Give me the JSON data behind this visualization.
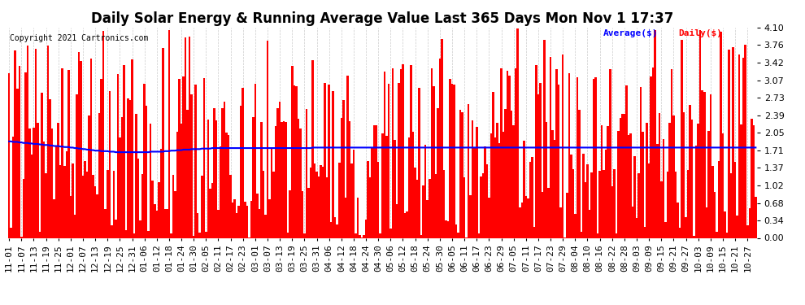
{
  "title": "Daily Solar Energy & Running Average Value Last 365 Days Mon Nov 1 17:37",
  "copyright": "Copyright 2021 Cartronics.com",
  "legend_avg": "Average($)",
  "legend_daily": "Daily($)",
  "bar_color": "#ff0000",
  "avg_line_color": "#0000ff",
  "background_color": "#ffffff",
  "grid_color": "#aaaaaa",
  "ylim": [
    0.0,
    4.1
  ],
  "yticks": [
    0.0,
    0.34,
    0.68,
    1.02,
    1.37,
    1.71,
    2.05,
    2.39,
    2.73,
    3.07,
    3.42,
    3.76,
    4.1
  ],
  "num_bars": 365,
  "title_fontsize": 12,
  "tick_fontsize": 8,
  "xlabel_dates": [
    "11-01",
    "11-07",
    "11-13",
    "11-19",
    "11-25",
    "12-01",
    "12-07",
    "12-13",
    "12-19",
    "12-25",
    "12-31",
    "01-06",
    "01-12",
    "01-18",
    "01-24",
    "01-30",
    "02-05",
    "02-11",
    "02-17",
    "02-23",
    "03-01",
    "03-07",
    "03-13",
    "03-19",
    "03-25",
    "03-31",
    "04-06",
    "04-12",
    "04-18",
    "04-24",
    "04-30",
    "05-06",
    "05-12",
    "05-18",
    "05-24",
    "05-30",
    "06-05",
    "06-11",
    "06-17",
    "06-23",
    "06-29",
    "07-05",
    "07-11",
    "07-17",
    "07-23",
    "07-29",
    "08-04",
    "08-10",
    "08-16",
    "08-22",
    "08-28",
    "09-03",
    "09-09",
    "09-15",
    "09-21",
    "09-27",
    "10-03",
    "10-09",
    "10-15",
    "10-21",
    "10-27"
  ],
  "avg_values": [
    1.88,
    1.88,
    1.87,
    1.87,
    1.87,
    1.86,
    1.86,
    1.85,
    1.85,
    1.85,
    1.84,
    1.84,
    1.83,
    1.83,
    1.83,
    1.82,
    1.82,
    1.81,
    1.81,
    1.81,
    1.8,
    1.8,
    1.79,
    1.79,
    1.79,
    1.78,
    1.78,
    1.77,
    1.77,
    1.77,
    1.76,
    1.76,
    1.75,
    1.75,
    1.74,
    1.74,
    1.73,
    1.73,
    1.72,
    1.72,
    1.71,
    1.71,
    1.7,
    1.7,
    1.7,
    1.69,
    1.69,
    1.69,
    1.69,
    1.68,
    1.68,
    1.68,
    1.67,
    1.67,
    1.67,
    1.67,
    1.67,
    1.67,
    1.67,
    1.67,
    1.67,
    1.67,
    1.67,
    1.67,
    1.67,
    1.67,
    1.67,
    1.67,
    1.67,
    1.68,
    1.68,
    1.68,
    1.68,
    1.68,
    1.68,
    1.68,
    1.69,
    1.69,
    1.69,
    1.7,
    1.7,
    1.7,
    1.71,
    1.71,
    1.71,
    1.72,
    1.72,
    1.72,
    1.72,
    1.73,
    1.73,
    1.73,
    1.73,
    1.73,
    1.74,
    1.74,
    1.74,
    1.74,
    1.74,
    1.75,
    1.75,
    1.75,
    1.75,
    1.75,
    1.75,
    1.75,
    1.75,
    1.75,
    1.75,
    1.75,
    1.75,
    1.75,
    1.75,
    1.75,
    1.75,
    1.75,
    1.75,
    1.75,
    1.75,
    1.75,
    1.75,
    1.75,
    1.75,
    1.75,
    1.75,
    1.75,
    1.75,
    1.75,
    1.75,
    1.75,
    1.75,
    1.75,
    1.75,
    1.75,
    1.75,
    1.75,
    1.75,
    1.75,
    1.75,
    1.75,
    1.75,
    1.75,
    1.75,
    1.75,
    1.75,
    1.75,
    1.75,
    1.75,
    1.76,
    1.76,
    1.76,
    1.76,
    1.76,
    1.76,
    1.76,
    1.76,
    1.76,
    1.76,
    1.76,
    1.76,
    1.76,
    1.76,
    1.76,
    1.76,
    1.76,
    1.76,
    1.76,
    1.76,
    1.76,
    1.76,
    1.76,
    1.76,
    1.76,
    1.76,
    1.76,
    1.76,
    1.76,
    1.76,
    1.76,
    1.76,
    1.76,
    1.76,
    1.76,
    1.76,
    1.76,
    1.76,
    1.76,
    1.76,
    1.76,
    1.76,
    1.76,
    1.76,
    1.76,
    1.76,
    1.76,
    1.76,
    1.76,
    1.76,
    1.76,
    1.76,
    1.76,
    1.76,
    1.76,
    1.76,
    1.76,
    1.76,
    1.76,
    1.76,
    1.76,
    1.76,
    1.76,
    1.76,
    1.76,
    1.76,
    1.76,
    1.76,
    1.76,
    1.76,
    1.76,
    1.76,
    1.76,
    1.76,
    1.76,
    1.76,
    1.76,
    1.76,
    1.76,
    1.76,
    1.76,
    1.76,
    1.76,
    1.76,
    1.76,
    1.76,
    1.76,
    1.76,
    1.76,
    1.76,
    1.76,
    1.76,
    1.76,
    1.76,
    1.76,
    1.76,
    1.76,
    1.76,
    1.76,
    1.76,
    1.76,
    1.76,
    1.76,
    1.76,
    1.76,
    1.76,
    1.76,
    1.76,
    1.76,
    1.76,
    1.76,
    1.76,
    1.76,
    1.76,
    1.76,
    1.76,
    1.76,
    1.76,
    1.76,
    1.76,
    1.76,
    1.76,
    1.76,
    1.76,
    1.76,
    1.76,
    1.76,
    1.76,
    1.76,
    1.76,
    1.76,
    1.76,
    1.76,
    1.76,
    1.76,
    1.76,
    1.76,
    1.76,
    1.76,
    1.76,
    1.76,
    1.76,
    1.76,
    1.76,
    1.76,
    1.76,
    1.76,
    1.76,
    1.76,
    1.76,
    1.76,
    1.76,
    1.76,
    1.76,
    1.76,
    1.76,
    1.76,
    1.76,
    1.76,
    1.76,
    1.76,
    1.76,
    1.76,
    1.76,
    1.76,
    1.76,
    1.76,
    1.76,
    1.76,
    1.76,
    1.76,
    1.76,
    1.76,
    1.76,
    1.76,
    1.76,
    1.76,
    1.76,
    1.76,
    1.76,
    1.76,
    1.76,
    1.76,
    1.76,
    1.76,
    1.76,
    1.76,
    1.76,
    1.76,
    1.76,
    1.76,
    1.76,
    1.76,
    1.76,
    1.76,
    1.76,
    1.76,
    1.76,
    1.76,
    1.76,
    1.76,
    1.76,
    1.76,
    1.76,
    1.76,
    1.76,
    1.76,
    1.76,
    1.76,
    1.76,
    1.76,
    1.76,
    1.76,
    1.76,
    1.76,
    1.76,
    1.76
  ]
}
